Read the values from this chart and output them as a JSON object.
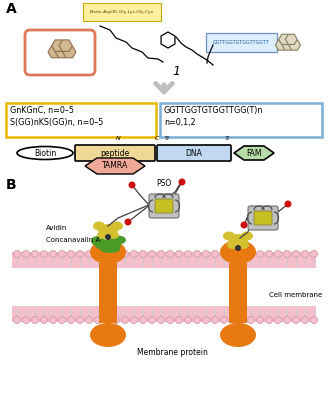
{
  "panel_A_label": "A",
  "panel_B_label": "B",
  "compound_label": "1",
  "peptide_box_text": "GnKGnC, n=0–5\nS(GG)nKS(GG)n, n=0–5",
  "dna_box_text": "GGTTGGTGTGGTTGG(T)n\nn=0,1,2",
  "dna_seq_top": "GGTTGGTGTGGTTGGTT",
  "peptide_seq_top": "Biotin-Asp(8)-Gly-Lys-Gly-Cys",
  "biotin_label": "Biotin",
  "peptide_label": "peptide",
  "dna_label": "DNA",
  "fam_label": "FAM",
  "tamra_label": "TAMRA",
  "N_label": "N",
  "C_label": "C",
  "five_label": "5'",
  "three_label": "3'",
  "avidin_label": "Avidin",
  "concan_label": "Concanavalin A",
  "membrane_label": "Cell membrane",
  "protein_label": "Membrane protein",
  "pso_label": "PSO",
  "bg_color": "#ffffff",
  "peptide_box_color": "#e8b800",
  "dna_box_color": "#7ab0d8",
  "orange_color": "#e87010",
  "green_color": "#4a9a28",
  "yellow_color": "#d8c020",
  "avidin_yellow": "#d4c030",
  "red_color": "#cc1010",
  "tamra_color": "#f0a898",
  "fam_color": "#b8dca8",
  "pink_membrane": "#f5c0cc",
  "gray_color": "#a0a0a0",
  "dark_gray": "#606060",
  "probe_gray": "#909090",
  "probe_inner": "#c8c020"
}
